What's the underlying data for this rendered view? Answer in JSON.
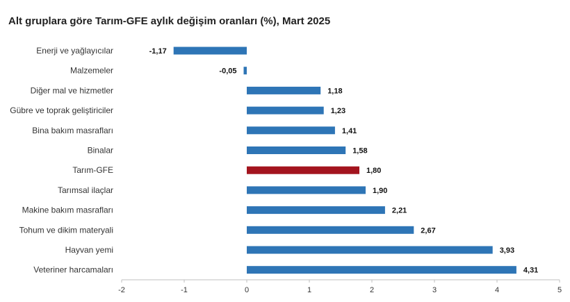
{
  "chart_data": {
    "type": "bar",
    "orientation": "horizontal",
    "title": "Alt gruplara göre Tarım-GFE aylık değişim oranları (%), Mart 2025",
    "categories": [
      "Enerji  ve yağlayıcılar",
      "Malzemeler",
      "Diğer mal ve hizmetler",
      "Gübre ve toprak geliştiriciler",
      "Bina bakım masrafları",
      "Binalar",
      "Tarım-GFE",
      "Tarımsal ilaçlar",
      "Makine bakım masrafları",
      "Tohum ve dikim materyali",
      "Hayvan yemi",
      "Veteriner harcamaları"
    ],
    "values": [
      -1.17,
      -0.05,
      1.18,
      1.23,
      1.41,
      1.58,
      1.8,
      1.9,
      2.21,
      2.67,
      3.93,
      4.31
    ],
    "value_labels": [
      "-1,17",
      "-0,05",
      "1,18",
      "1,23",
      "1,41",
      "1,58",
      "1,80",
      "1,90",
      "2,21",
      "2,67",
      "3,93",
      "4,31"
    ],
    "xlim": [
      -2,
      5
    ],
    "x_ticks": [
      "-2",
      "-1",
      "0",
      "1",
      "2",
      "3",
      "4",
      "5"
    ],
    "highlight_category": "Tarım-GFE",
    "colors": {
      "bar": "#2e75b6",
      "highlight": "#a3141e",
      "axis": "#bfbfbf"
    },
    "grid": false,
    "legend": "none"
  }
}
